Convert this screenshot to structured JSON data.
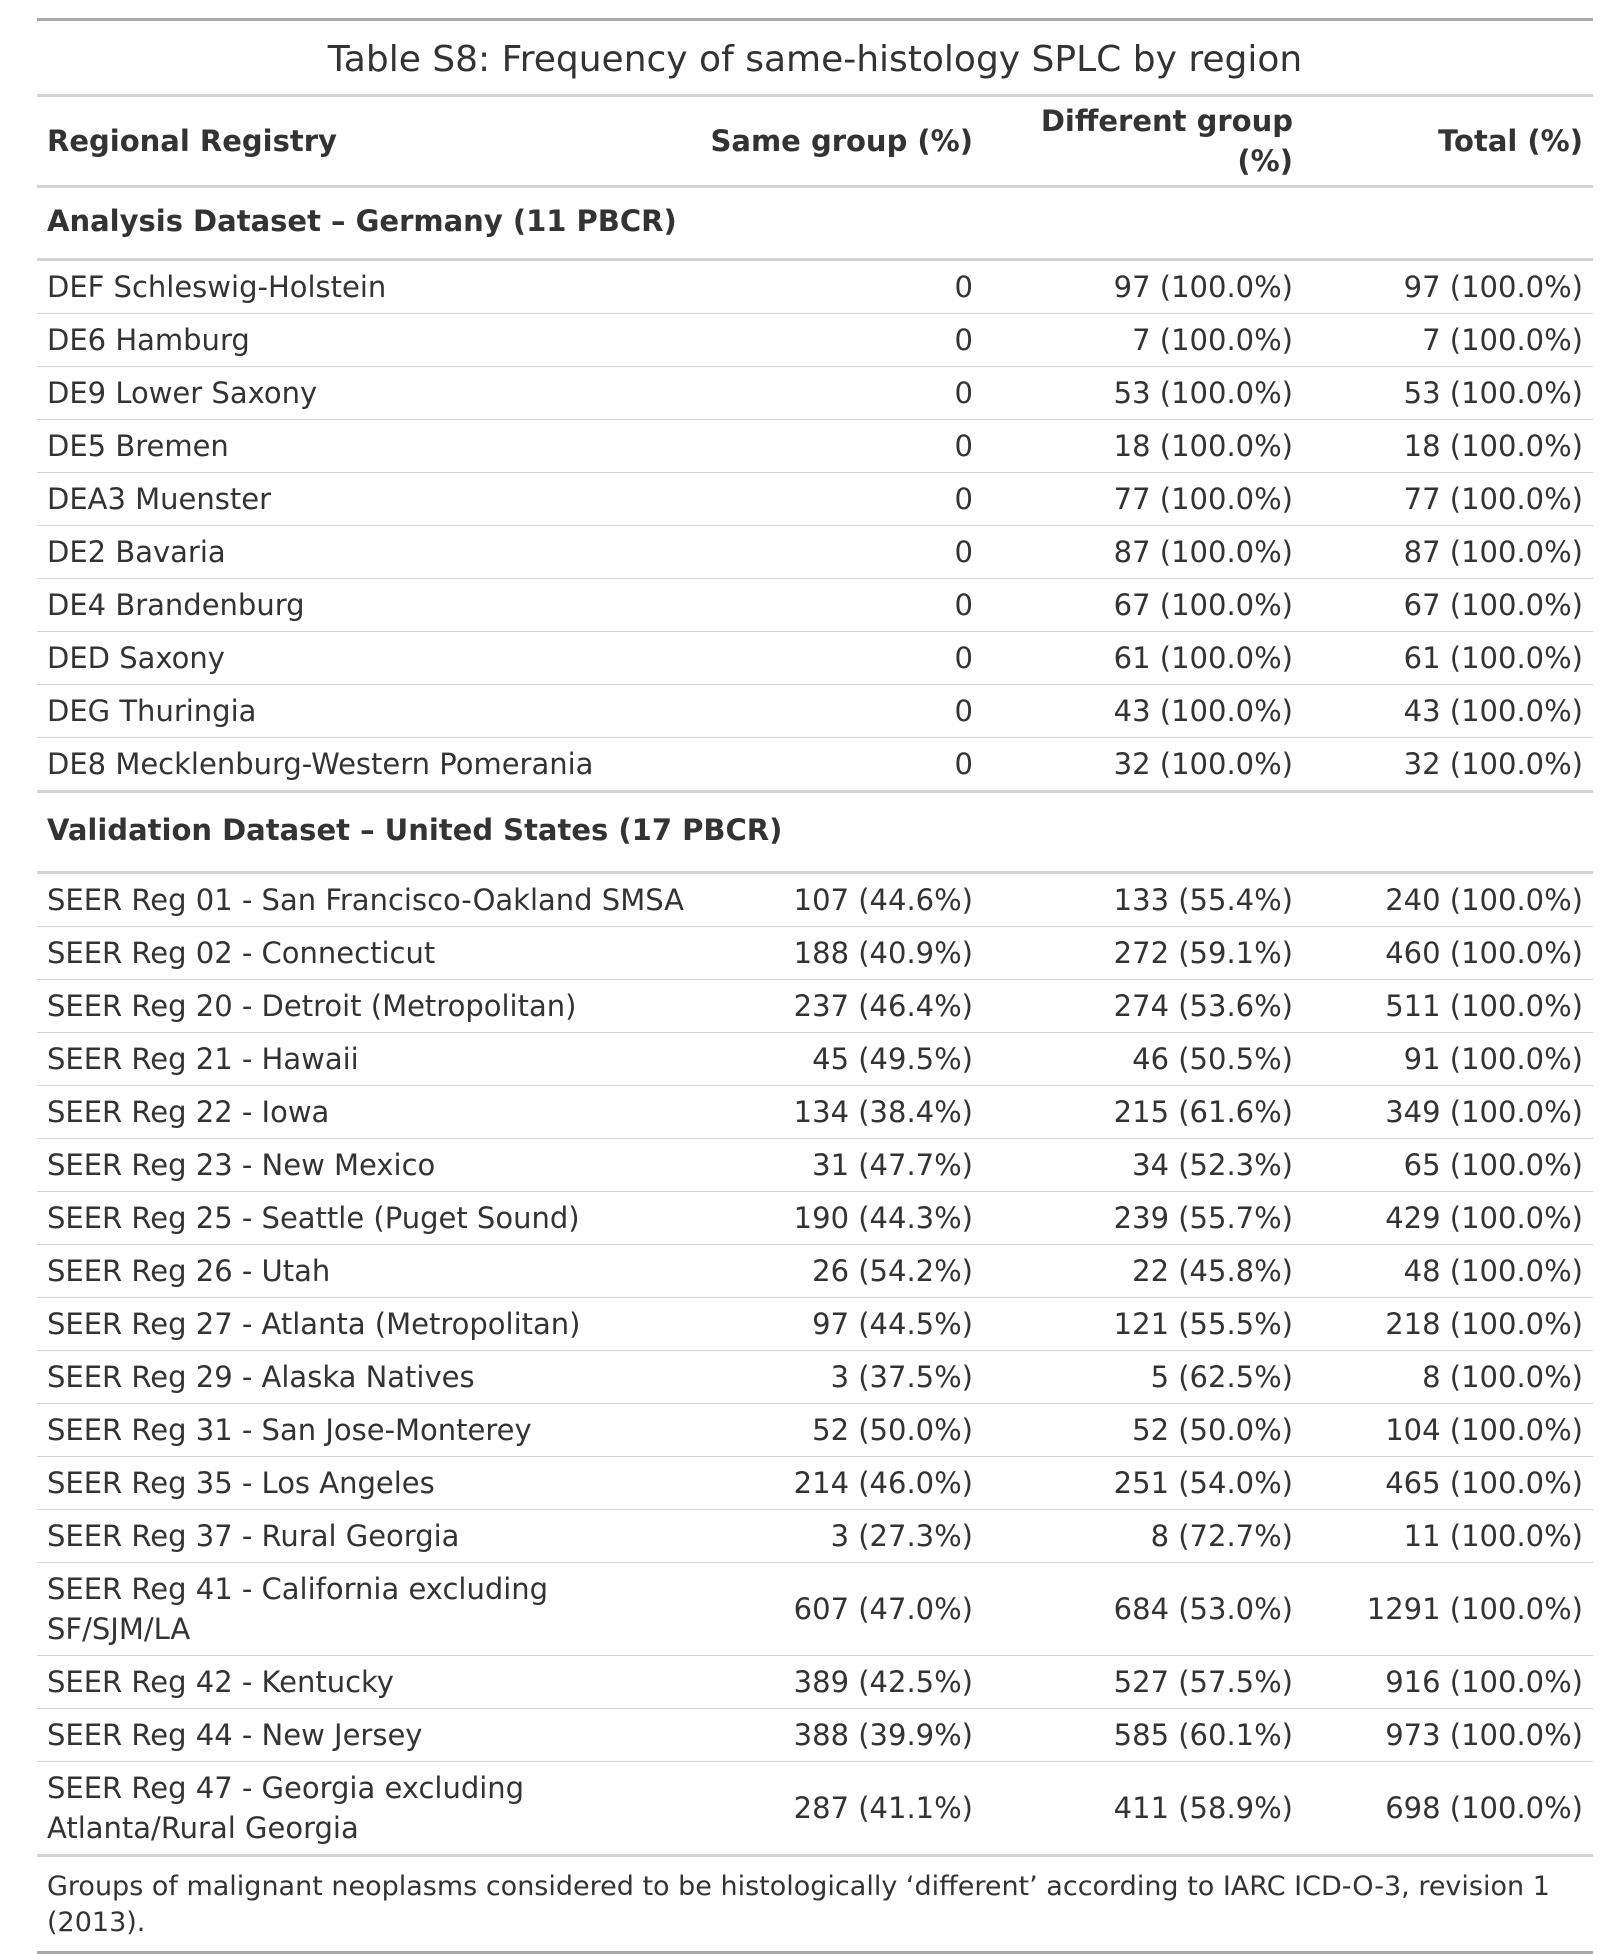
{
  "table": {
    "title": "Table S8: Frequency of same-histology SPLC by region",
    "columns": [
      "Regional Registry",
      "Same group (%)",
      "Different group (%)",
      "Total (%)"
    ],
    "groups": [
      {
        "label": "Analysis Dataset – Germany (11 PBCR)",
        "rows": [
          {
            "registry": "DEF Schleswig-Holstein",
            "same": "0",
            "different": "97 (100.0%)",
            "total": "97 (100.0%)"
          },
          {
            "registry": "DE6 Hamburg",
            "same": "0",
            "different": "7 (100.0%)",
            "total": "7 (100.0%)"
          },
          {
            "registry": "DE9 Lower Saxony",
            "same": "0",
            "different": "53 (100.0%)",
            "total": "53 (100.0%)"
          },
          {
            "registry": "DE5 Bremen",
            "same": "0",
            "different": "18 (100.0%)",
            "total": "18 (100.0%)"
          },
          {
            "registry": "DEA3 Muenster",
            "same": "0",
            "different": "77 (100.0%)",
            "total": "77 (100.0%)"
          },
          {
            "registry": "DE2 Bavaria",
            "same": "0",
            "different": "87 (100.0%)",
            "total": "87 (100.0%)"
          },
          {
            "registry": "DE4 Brandenburg",
            "same": "0",
            "different": "67 (100.0%)",
            "total": "67 (100.0%)"
          },
          {
            "registry": "DED Saxony",
            "same": "0",
            "different": "61 (100.0%)",
            "total": "61 (100.0%)"
          },
          {
            "registry": "DEG Thuringia",
            "same": "0",
            "different": "43 (100.0%)",
            "total": "43 (100.0%)"
          },
          {
            "registry": "DE8 Mecklenburg-Western Pomerania",
            "same": "0",
            "different": "32 (100.0%)",
            "total": "32 (100.0%)"
          }
        ]
      },
      {
        "label": "Validation Dataset – United States (17 PBCR)",
        "rows": [
          {
            "registry": "SEER Reg 01 - San Francisco-Oakland SMSA",
            "same": "107 (44.6%)",
            "different": "133 (55.4%)",
            "total": "240 (100.0%)"
          },
          {
            "registry": "SEER Reg 02 - Connecticut",
            "same": "188 (40.9%)",
            "different": "272 (59.1%)",
            "total": "460 (100.0%)"
          },
          {
            "registry": "SEER Reg 20 - Detroit (Metropolitan)",
            "same": "237 (46.4%)",
            "different": "274 (53.6%)",
            "total": "511 (100.0%)"
          },
          {
            "registry": "SEER Reg 21 - Hawaii",
            "same": "45 (49.5%)",
            "different": "46 (50.5%)",
            "total": "91 (100.0%)"
          },
          {
            "registry": "SEER Reg 22 - Iowa",
            "same": "134 (38.4%)",
            "different": "215 (61.6%)",
            "total": "349 (100.0%)"
          },
          {
            "registry": "SEER Reg 23 - New Mexico",
            "same": "31 (47.7%)",
            "different": "34 (52.3%)",
            "total": "65 (100.0%)"
          },
          {
            "registry": "SEER Reg 25 - Seattle (Puget Sound)",
            "same": "190 (44.3%)",
            "different": "239 (55.7%)",
            "total": "429 (100.0%)"
          },
          {
            "registry": "SEER Reg 26 - Utah",
            "same": "26 (54.2%)",
            "different": "22 (45.8%)",
            "total": "48 (100.0%)"
          },
          {
            "registry": "SEER Reg 27 - Atlanta (Metropolitan)",
            "same": "97 (44.5%)",
            "different": "121 (55.5%)",
            "total": "218 (100.0%)"
          },
          {
            "registry": "SEER Reg 29 - Alaska Natives",
            "same": "3 (37.5%)",
            "different": "5 (62.5%)",
            "total": "8 (100.0%)"
          },
          {
            "registry": "SEER Reg 31 - San Jose-Monterey",
            "same": "52 (50.0%)",
            "different": "52 (50.0%)",
            "total": "104 (100.0%)"
          },
          {
            "registry": "SEER Reg 35 - Los Angeles",
            "same": "214 (46.0%)",
            "different": "251 (54.0%)",
            "total": "465 (100.0%)"
          },
          {
            "registry": "SEER Reg 37 - Rural Georgia",
            "same": "3 (27.3%)",
            "different": "8 (72.7%)",
            "total": "11 (100.0%)"
          },
          {
            "registry": "SEER Reg 41 - California excluding SF/SJM/LA",
            "same": "607 (47.0%)",
            "different": "684 (53.0%)",
            "total": "1291 (100.0%)"
          },
          {
            "registry": "SEER Reg 42 - Kentucky",
            "same": "389 (42.5%)",
            "different": "527 (57.5%)",
            "total": "916 (100.0%)"
          },
          {
            "registry": "SEER Reg 44 - New Jersey",
            "same": "388 (39.9%)",
            "different": "585 (60.1%)",
            "total": "973 (100.0%)"
          },
          {
            "registry": "SEER Reg 47 - Georgia excluding Atlanta/Rural Georgia",
            "same": "287 (41.1%)",
            "different": "411 (58.9%)",
            "total": "698 (100.0%)"
          }
        ]
      }
    ],
    "footnote": "Groups of malignant neoplasms considered to be histologically ‘different’ according to IARC ICD-O-3, revision 1 (2013)."
  }
}
